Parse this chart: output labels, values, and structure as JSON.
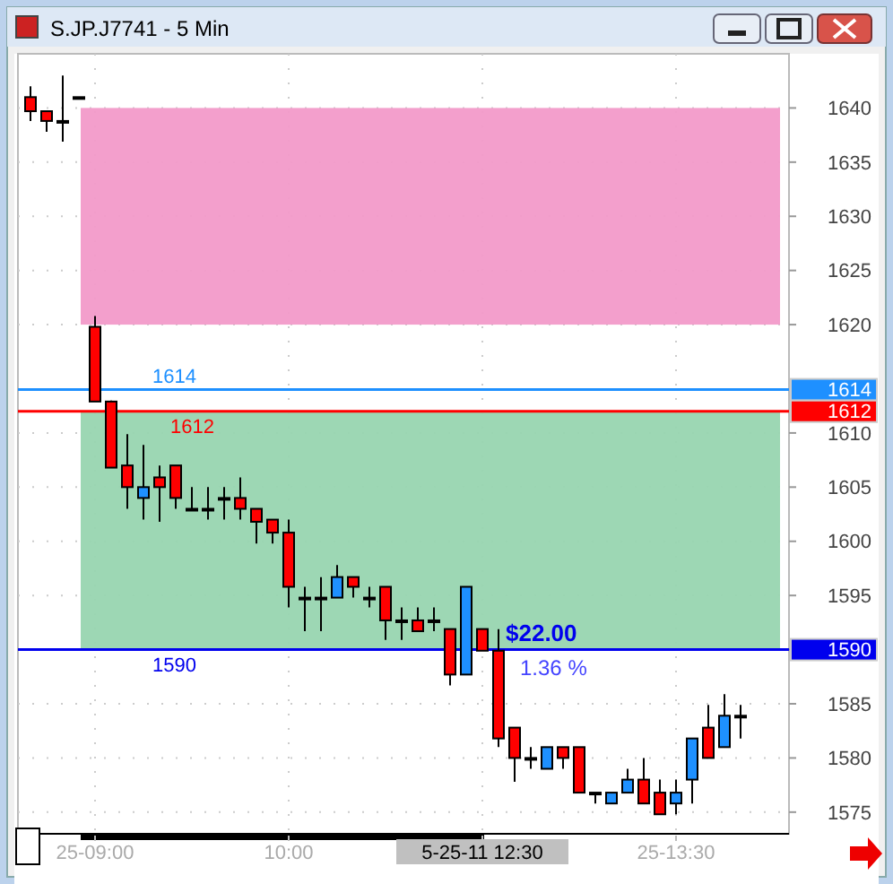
{
  "chart_data": {
    "type": "candlestick",
    "title": "S.JP.J7741 - 5 Min",
    "categories": [
      null,
      null,
      null,
      null,
      "25-09:00",
      null,
      null,
      null,
      null,
      null,
      null,
      null,
      null,
      null,
      null,
      null,
      "10:00",
      null,
      null,
      null,
      null,
      null,
      null,
      null,
      null,
      null,
      null,
      null,
      "5-25-11  12:30",
      null,
      null,
      null,
      null,
      null,
      null,
      null,
      null,
      null,
      null,
      null,
      "25-13:30",
      null,
      null,
      null,
      null
    ],
    "ohlc": [
      [
        1641,
        1642,
        1638.8,
        1639.7
      ],
      [
        1639.7,
        1639.7,
        1637.8,
        1638.8
      ],
      [
        1638.8,
        1643,
        1636.9,
        1638.8
      ],
      [
        1641,
        1641,
        1641,
        1641
      ],
      [
        1619.8,
        1620.8,
        1612.9,
        1612.9
      ],
      [
        1612.9,
        1613,
        1606.8,
        1606.8
      ],
      [
        1607,
        1609.9,
        1603,
        1605
      ],
      [
        1604,
        1608.9,
        1602,
        1605
      ],
      [
        1605.9,
        1607,
        1601.8,
        1605
      ],
      [
        1607,
        1607,
        1603,
        1604
      ],
      [
        1603,
        1605,
        1603,
        1603
      ],
      [
        1603,
        1605,
        1602,
        1603
      ],
      [
        1604,
        1605,
        1602,
        1604
      ],
      [
        1604,
        1605.9,
        1602,
        1603
      ],
      [
        1603,
        1603,
        1599.8,
        1601.8
      ],
      [
        1602,
        1602,
        1599.8,
        1600.8
      ],
      [
        1600.8,
        1602,
        1593.9,
        1595.8
      ],
      [
        1594.8,
        1595.8,
        1591.7,
        1594.8
      ],
      [
        1594.8,
        1596.7,
        1591.7,
        1594.8
      ],
      [
        1594.8,
        1597.8,
        1594.8,
        1596.7
      ],
      [
        1596.7,
        1596.7,
        1594.8,
        1595.8
      ],
      [
        1594.8,
        1595.8,
        1593.9,
        1594.8
      ],
      [
        1595.8,
        1595.8,
        1590.9,
        1592.7
      ],
      [
        1592.7,
        1593.9,
        1590.9,
        1592.7
      ],
      [
        1592.7,
        1593.9,
        1591.7,
        1591.7
      ],
      [
        1592.7,
        1593.9,
        1591.7,
        1592.7
      ],
      [
        1591.9,
        1591.9,
        1586.7,
        1587.7
      ],
      [
        1587.7,
        1595.8,
        1587.7,
        1595.8
      ],
      [
        1591.9,
        1591.9,
        1589.9,
        1589.9
      ],
      [
        1589.9,
        1591.9,
        1581,
        1581.8
      ],
      [
        1582.8,
        1582.8,
        1577.8,
        1580
      ],
      [
        1580,
        1581,
        1579,
        1580
      ],
      [
        1579,
        1581,
        1579,
        1581
      ],
      [
        1581,
        1581,
        1579,
        1580
      ],
      [
        1581,
        1581,
        1576.8,
        1576.8
      ],
      [
        1576.8,
        1576.8,
        1575.8,
        1576.8
      ],
      [
        1575.8,
        1576.8,
        1575.8,
        1576.8
      ],
      [
        1576.8,
        1579,
        1576.8,
        1578
      ],
      [
        1578,
        1580,
        1575.8,
        1575.8
      ],
      [
        1576.8,
        1578,
        1574.8,
        1574.8
      ],
      [
        1575.8,
        1578,
        1574.8,
        1576.8
      ],
      [
        1578,
        1581.8,
        1575.8,
        1581.8
      ],
      [
        1582.8,
        1584.9,
        1580,
        1580
      ],
      [
        1581,
        1585.9,
        1581,
        1583.9
      ],
      [
        1583.9,
        1584.9,
        1581.8,
        1583.9
      ]
    ],
    "colors": [
      "#ff0000",
      "#ff0000",
      "#000000",
      "#000000",
      "#ff0000",
      "#ff0000",
      "#ff0000",
      "#1e90ff",
      "#ff0000",
      "#ff0000",
      "#000000",
      "#000000",
      "#000000",
      "#ff0000",
      "#ff0000",
      "#ff0000",
      "#ff0000",
      "#000000",
      "#000000",
      "#1e90ff",
      "#ff0000",
      "#000000",
      "#ff0000",
      "#000000",
      "#ff0000",
      "#000000",
      "#ff0000",
      "#1e90ff",
      "#ff0000",
      "#ff0000",
      "#ff0000",
      "#000000",
      "#1e90ff",
      "#ff0000",
      "#ff0000",
      "#000000",
      "#1e90ff",
      "#1e90ff",
      "#ff0000",
      "#ff0000",
      "#1e90ff",
      "#1e90ff",
      "#ff0000",
      "#1e90ff",
      "#000000"
    ],
    "ylim": [
      1573,
      1645
    ],
    "yticks": [
      1575,
      1580,
      1585,
      1590,
      1595,
      1600,
      1605,
      1610,
      1620,
      1625,
      1630,
      1635,
      1640
    ],
    "grid": true,
    "bands": [
      {
        "axis": "y",
        "from": 1620,
        "to": 1640,
        "color": "#f29ac9"
      },
      {
        "axis": "y",
        "from": 1590,
        "to": 1612,
        "color": "#98d5b0"
      }
    ],
    "ref_lines": [
      {
        "axis": "y",
        "value": 1614,
        "label": "1614",
        "color": "#1e90ff"
      },
      {
        "axis": "y",
        "value": 1612,
        "label": "1612",
        "color": "#ff0000"
      },
      {
        "axis": "y",
        "value": 1590,
        "label": "1590",
        "color": "#0000ee"
      }
    ],
    "annotations": [
      "$22.00",
      "1.36 %"
    ]
  }
}
